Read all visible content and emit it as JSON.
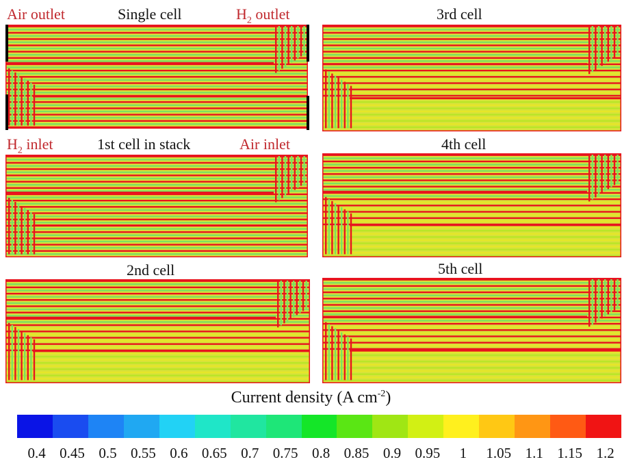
{
  "panels": [
    {
      "id": "single",
      "title": "Single cell",
      "pattern": "a"
    },
    {
      "id": "cell3",
      "title": "3rd cell",
      "pattern": "b"
    },
    {
      "id": "cell1",
      "title": "1st cell in stack",
      "pattern": "a"
    },
    {
      "id": "cell4",
      "title": "4th cell",
      "pattern": "b"
    },
    {
      "id": "cell2",
      "title": "2nd cell",
      "pattern": "b"
    },
    {
      "id": "cell5",
      "title": "5th cell",
      "pattern": "b"
    }
  ],
  "labels": {
    "air_outlet": "Air outlet",
    "h2_outlet_prefix": "H",
    "h2_outlet_sub": "2",
    "h2_outlet_suffix": " outlet",
    "h2_inlet_prefix": "H",
    "h2_inlet_sub": "2",
    "h2_inlet_suffix": " inlet",
    "air_inlet": "Air inlet"
  },
  "legend": {
    "title_main": "Current density (A cm",
    "title_sup": "-2",
    "title_end": ")",
    "ticks": [
      "0.4",
      "0.45",
      "0.5",
      "0.55",
      "0.6",
      "0.65",
      "0.7",
      "0.75",
      "0.8",
      "0.85",
      "0.9",
      "0.95",
      "1",
      "1.05",
      "1.1",
      "1.15",
      "1.2"
    ],
    "colors": [
      "#0a14e6",
      "#1a4cf0",
      "#1e84f5",
      "#20a8f2",
      "#22d2f5",
      "#1fe6c8",
      "#20e6a0",
      "#1ee678",
      "#14e628",
      "#5ae614",
      "#a0e614",
      "#d2f014",
      "#fff01e",
      "#ffc814",
      "#ff9614",
      "#ff5a14",
      "#f01414"
    ]
  },
  "colors": {
    "red": "#e8141e",
    "green": "#7ee060",
    "yellow": "#e6e628",
    "label_red": "#c0282d"
  }
}
